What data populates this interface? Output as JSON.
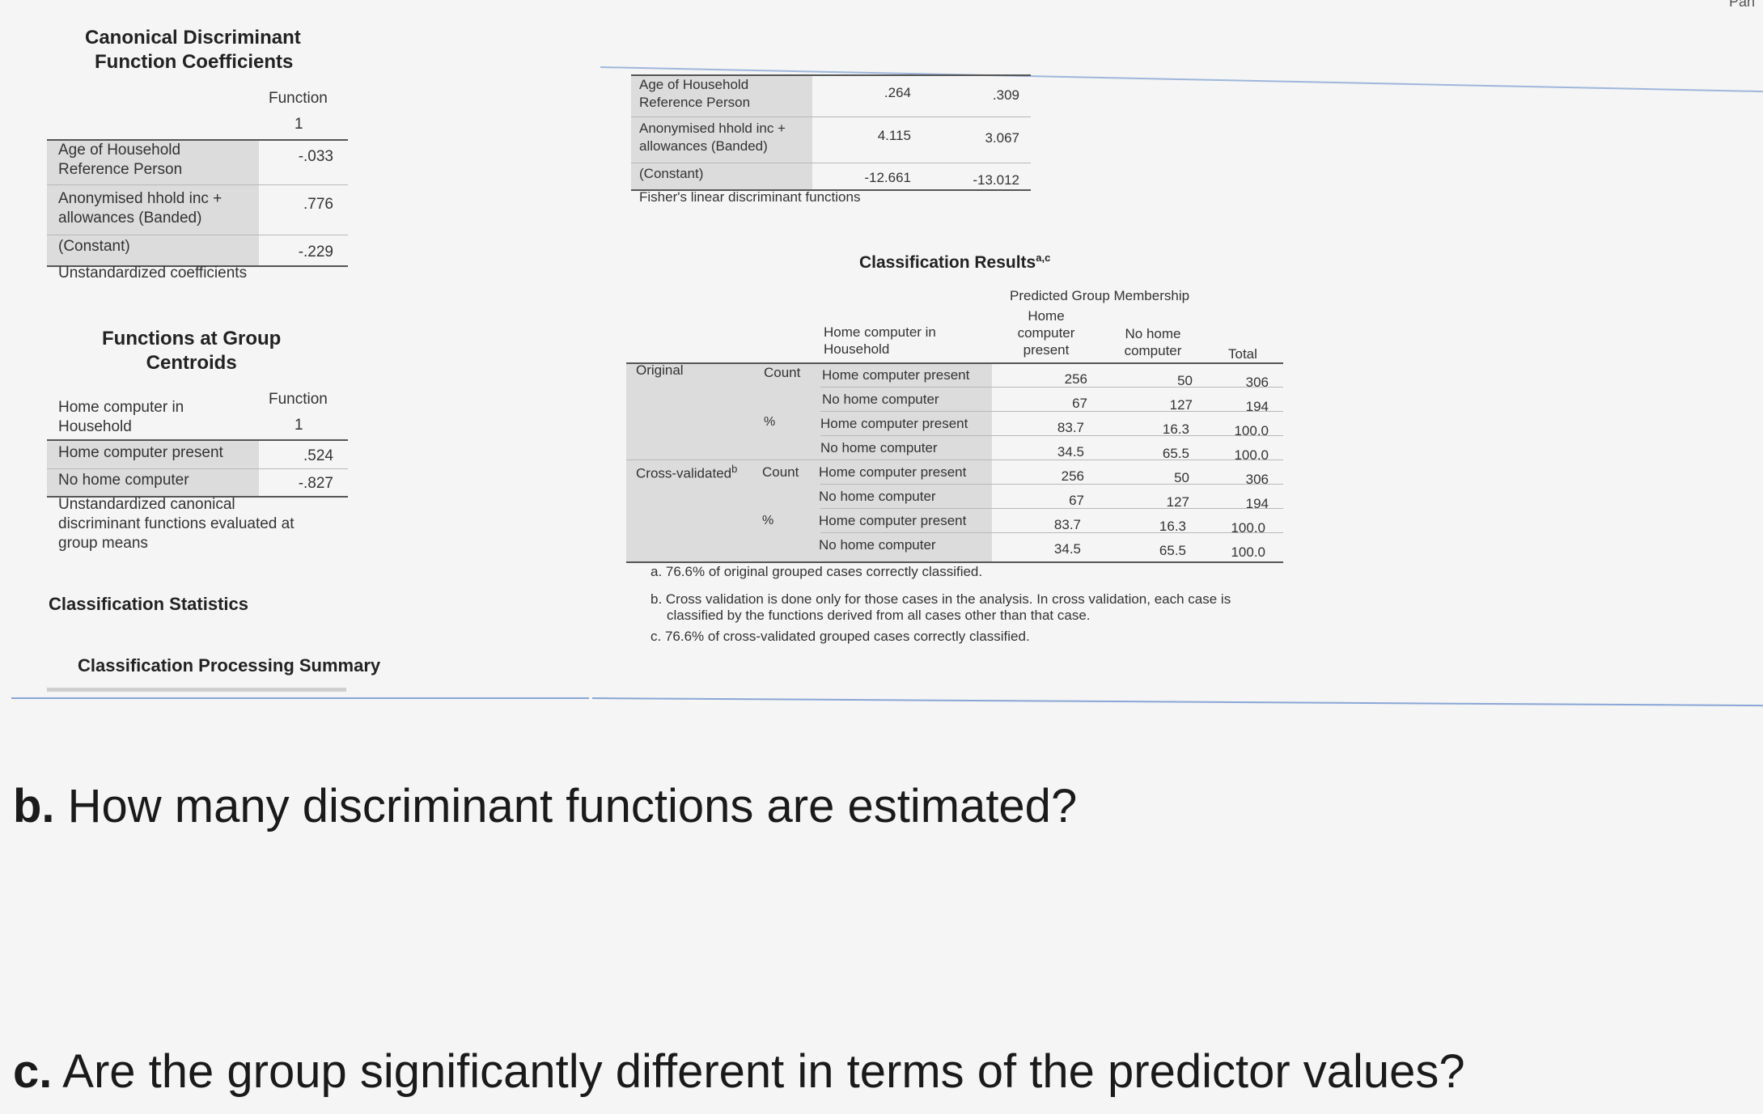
{
  "coef": {
    "title1": "Canonical Discriminant",
    "title2": "Function Coefficients",
    "col_header": "Function",
    "col_num": "1",
    "rows": [
      {
        "label1": "Age of Household",
        "label2": "Reference Person",
        "value": "-.033"
      },
      {
        "label1": "Anonymised hhold inc +",
        "label2": "allowances (Banded)",
        "value": ".776"
      },
      {
        "label1": "(Constant)",
        "label2": "",
        "value": "-.229"
      }
    ],
    "footer": "Unstandardized coefficients"
  },
  "centroids": {
    "title1": "Functions at Group",
    "title2": "Centroids",
    "row_header1": "Home computer in",
    "row_header2": "Household",
    "col_header": "Function",
    "col_num": "1",
    "rows": [
      {
        "label": "Home computer present",
        "value": ".524"
      },
      {
        "label": "No home computer",
        "value": "-.827"
      }
    ],
    "footer1": "Unstandardized canonical",
    "footer2": "discriminant functions evaluated at",
    "footer3": "group means"
  },
  "class_stats_title": "Classification Statistics",
  "class_proc_title": "Classification Processing Summary",
  "fisher": {
    "rows": [
      {
        "label1": "Age of Household",
        "label2": "Reference Person",
        "v1": ".264",
        "v2": ".309"
      },
      {
        "label1": "Anonymised hhold inc +",
        "label2": "allowances (Banded)",
        "v1": "4.115",
        "v2": "3.067"
      },
      {
        "label1": "(Constant)",
        "label2": "",
        "v1": "-12.661",
        "v2": "-13.012"
      }
    ],
    "footer": "Fisher's linear discriminant functions"
  },
  "results": {
    "title": "Classification Results",
    "title_sup": "a,c",
    "predicted_header": "Predicted Group Membership",
    "row_header1": "Home computer in",
    "row_header2": "Household",
    "col1_1": "Home",
    "col1_2": "computer",
    "col1_3": "present",
    "col2_1": "No home",
    "col2_2": "computer",
    "total": "Total",
    "original": "Original",
    "cross": "Cross-validated",
    "cross_sup": "b",
    "count": "Count",
    "pct": "%",
    "rows": [
      {
        "label": "Home computer present",
        "a": "256",
        "b": "50",
        "t": "306"
      },
      {
        "label": "No home computer",
        "a": "67",
        "b": "127",
        "t": "194"
      },
      {
        "label": "Home computer present",
        "a": "83.7",
        "b": "16.3",
        "t": "100.0"
      },
      {
        "label": "No home computer",
        "a": "34.5",
        "b": "65.5",
        "t": "100.0"
      },
      {
        "label": "Home computer present",
        "a": "256",
        "b": "50",
        "t": "306"
      },
      {
        "label": "No home computer",
        "a": "67",
        "b": "127",
        "t": "194"
      },
      {
        "label": "Home computer present",
        "a": "83.7",
        "b": "16.3",
        "t": "100.0"
      },
      {
        "label": "No home computer",
        "a": "34.5",
        "b": "65.5",
        "t": "100.0"
      }
    ],
    "note_a": "a. 76.6% of original grouped cases correctly classified.",
    "note_b1": "b. Cross validation is done only for those cases in the analysis. In cross validation, each case is",
    "note_b2": "classified by the functions derived from all cases other than that case.",
    "note_c": "c. 76.6% of cross-validated grouped cases correctly classified."
  },
  "corner_text": "Pan",
  "question_b_letter": "b.",
  "question_b_text": " How many discriminant functions are estimated?",
  "question_c_letter": "c.",
  "question_c_text": " Are the group significantly different in terms of the predictor values?"
}
